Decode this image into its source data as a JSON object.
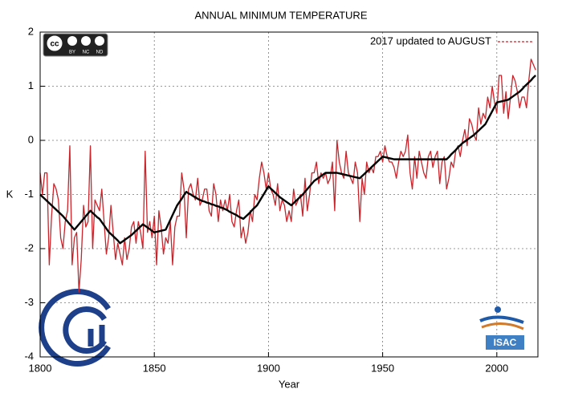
{
  "chart_data": {
    "type": "line",
    "title": "ANNUAL MINIMUM TEMPERATURE",
    "x_label": "Year",
    "y_label": "K",
    "logos": {
      "cc": "cc",
      "cc_labels": [
        "BY",
        "NC",
        "ND"
      ],
      "isac": "ISAC"
    },
    "xlim": [
      1800,
      2018
    ],
    "ylim": [
      -4,
      2
    ],
    "xticks": [
      1800,
      1850,
      1900,
      1950,
      2000
    ],
    "yticks": [
      -4,
      -3,
      -2,
      -1,
      0,
      1,
      2
    ],
    "grid": true,
    "legend": "top-right",
    "x": [
      1800,
      1801,
      1802,
      1803,
      1804,
      1805,
      1806,
      1807,
      1808,
      1809,
      1810,
      1811,
      1812,
      1813,
      1814,
      1815,
      1816,
      1817,
      1818,
      1819,
      1820,
      1821,
      1822,
      1823,
      1824,
      1825,
      1826,
      1827,
      1828,
      1829,
      1830,
      1831,
      1832,
      1833,
      1834,
      1835,
      1836,
      1837,
      1838,
      1839,
      1840,
      1841,
      1842,
      1843,
      1844,
      1845,
      1846,
      1847,
      1848,
      1849,
      1850,
      1851,
      1852,
      1853,
      1854,
      1855,
      1856,
      1857,
      1858,
      1859,
      1860,
      1861,
      1862,
      1863,
      1864,
      1865,
      1866,
      1867,
      1868,
      1869,
      1870,
      1871,
      1872,
      1873,
      1874,
      1875,
      1876,
      1877,
      1878,
      1879,
      1880,
      1881,
      1882,
      1883,
      1884,
      1885,
      1886,
      1887,
      1888,
      1889,
      1890,
      1891,
      1892,
      1893,
      1894,
      1895,
      1896,
      1897,
      1898,
      1899,
      1900,
      1901,
      1902,
      1903,
      1904,
      1905,
      1906,
      1907,
      1908,
      1909,
      1910,
      1911,
      1912,
      1913,
      1914,
      1915,
      1916,
      1917,
      1918,
      1919,
      1920,
      1921,
      1922,
      1923,
      1924,
      1925,
      1926,
      1927,
      1928,
      1929,
      1930,
      1931,
      1932,
      1933,
      1934,
      1935,
      1936,
      1937,
      1938,
      1939,
      1940,
      1941,
      1942,
      1943,
      1944,
      1945,
      1946,
      1947,
      1948,
      1949,
      1950,
      1951,
      1952,
      1953,
      1954,
      1955,
      1956,
      1957,
      1958,
      1959,
      1960,
      1961,
      1962,
      1963,
      1964,
      1965,
      1966,
      1967,
      1968,
      1969,
      1970,
      1971,
      1972,
      1973,
      1974,
      1975,
      1976,
      1977,
      1978,
      1979,
      1980,
      1981,
      1982,
      1983,
      1984,
      1985,
      1986,
      1987,
      1988,
      1989,
      1990,
      1991,
      1992,
      1993,
      1994,
      1995,
      1996,
      1997,
      1998,
      1999,
      2000,
      2001,
      2002,
      2003,
      2004,
      2005,
      2006,
      2007,
      2008,
      2009,
      2010,
      2011,
      2012,
      2013,
      2014,
      2015,
      2016,
      2017
    ],
    "series": [
      {
        "name": "2017 updated to AUGUST",
        "color": "#c8242b",
        "values": [
          -0.6,
          -1.0,
          -0.6,
          -0.6,
          -2.3,
          -1.4,
          -0.8,
          -0.9,
          -1.1,
          -1.8,
          -2.0,
          -1.5,
          -1.3,
          -0.1,
          -2.3,
          -1.8,
          -1.7,
          -2.8,
          -2.2,
          -1.2,
          -1.6,
          -1.5,
          -0.1,
          -2.0,
          -1.1,
          -1.2,
          -1.3,
          -0.9,
          -1.5,
          -2.1,
          -1.8,
          -1.2,
          -1.7,
          -2.2,
          -1.9,
          -2.1,
          -2.3,
          -1.8,
          -2.2,
          -2.0,
          -1.6,
          -1.5,
          -1.9,
          -1.5,
          -1.7,
          -2.0,
          -0.2,
          -1.7,
          -1.5,
          -1.8,
          -1.4,
          -2.3,
          -1.3,
          -1.6,
          -2.1,
          -1.8,
          -1.9,
          -1.5,
          -2.3,
          -1.6,
          -1.4,
          -1.4,
          -0.6,
          -0.9,
          -1.8,
          -0.9,
          -0.8,
          -1.0,
          -1.1,
          -0.7,
          -1.2,
          -1.1,
          -0.9,
          -0.9,
          -1.3,
          -1.4,
          -0.8,
          -1.0,
          -1.5,
          -1.1,
          -1.3,
          -1.1,
          -1.3,
          -1.0,
          -1.5,
          -1.6,
          -1.3,
          -1.1,
          -1.8,
          -1.6,
          -1.9,
          -1.7,
          -1.3,
          -1.5,
          -1.0,
          -1.1,
          -0.7,
          -0.4,
          -0.6,
          -0.9,
          -0.6,
          -0.9,
          -1.0,
          -1.2,
          -0.8,
          -1.3,
          -1.1,
          -1.2,
          -1.5,
          -1.3,
          -1.5,
          -0.9,
          -1.2,
          -1.1,
          -1.0,
          -1.4,
          -0.7,
          -1.3,
          -1.0,
          -0.6,
          -0.6,
          -0.4,
          -0.8,
          -0.6,
          -0.7,
          -0.6,
          -0.8,
          -0.7,
          -0.4,
          -1.3,
          0.0,
          -0.4,
          -0.6,
          -0.7,
          -0.2,
          -0.6,
          -0.7,
          -0.8,
          -0.4,
          -0.6,
          -1.5,
          -0.7,
          -1.0,
          -0.4,
          -0.6,
          -0.5,
          -0.6,
          -0.3,
          -0.3,
          -0.2,
          -0.4,
          -0.1,
          -0.3,
          -0.4,
          -0.4,
          -0.5,
          -0.7,
          -0.4,
          -0.2,
          -0.3,
          -0.2,
          0.1,
          -0.6,
          -0.9,
          -0.3,
          -0.7,
          -0.2,
          -0.4,
          -0.6,
          -0.7,
          -0.3,
          -0.2,
          -0.5,
          -0.3,
          -0.2,
          -0.8,
          -0.4,
          -0.3,
          -0.9,
          -0.7,
          -0.4,
          -0.5,
          -0.2,
          -0.1,
          -0.3,
          0.0,
          0.2,
          -0.1,
          0.4,
          0.3,
          0.1,
          0.0,
          0.6,
          0.3,
          0.5,
          0.4,
          0.8,
          0.6,
          1.0,
          0.7,
          0.5,
          1.2,
          1.2,
          0.5,
          0.9,
          0.4,
          0.8,
          1.2,
          1.1,
          0.9,
          0.6,
          0.8,
          0.8,
          0.6,
          1.1,
          1.5,
          1.4,
          1.3
        ]
      },
      {
        "color": "#000000",
        "values": [
          -1.0,
          -1.04,
          -1.08,
          -1.12,
          -1.16,
          -1.2,
          -1.24,
          -1.28,
          -1.32,
          -1.36,
          -1.4,
          -1.45,
          -1.5,
          -1.55,
          -1.6,
          -1.65,
          -1.6,
          -1.55,
          -1.5,
          -1.45,
          -1.4,
          -1.35,
          -1.3,
          -1.34,
          -1.38,
          -1.42,
          -1.45,
          -1.51,
          -1.57,
          -1.63,
          -1.69,
          -1.73,
          -1.77,
          -1.81,
          -1.85,
          -1.9,
          -1.87,
          -1.84,
          -1.81,
          -1.78,
          -1.75,
          -1.71,
          -1.67,
          -1.63,
          -1.59,
          -1.55,
          -1.58,
          -1.61,
          -1.64,
          -1.67,
          -1.7,
          -1.69,
          -1.68,
          -1.67,
          -1.66,
          -1.65,
          -1.56,
          -1.47,
          -1.38,
          -1.29,
          -1.2,
          -1.14,
          -1.08,
          -1.01,
          -0.95,
          -0.98,
          -1.0,
          -1.03,
          -1.05,
          -1.08,
          -1.1,
          -1.12,
          -1.13,
          -1.15,
          -1.16,
          -1.18,
          -1.19,
          -1.21,
          -1.22,
          -1.24,
          -1.25,
          -1.27,
          -1.29,
          -1.32,
          -1.34,
          -1.36,
          -1.38,
          -1.41,
          -1.43,
          -1.45,
          -1.41,
          -1.37,
          -1.33,
          -1.28,
          -1.24,
          -1.2,
          -1.13,
          -1.06,
          -0.99,
          -0.92,
          -0.85,
          -0.89,
          -0.93,
          -0.97,
          -1.01,
          -1.05,
          -1.08,
          -1.11,
          -1.14,
          -1.17,
          -1.2,
          -1.16,
          -1.12,
          -1.08,
          -1.04,
          -1.0,
          -0.95,
          -0.9,
          -0.85,
          -0.8,
          -0.75,
          -0.72,
          -0.69,
          -0.66,
          -0.63,
          -0.6,
          -0.6,
          -0.6,
          -0.6,
          -0.6,
          -0.6,
          -0.61,
          -0.62,
          -0.63,
          -0.64,
          -0.65,
          -0.66,
          -0.67,
          -0.68,
          -0.69,
          -0.7,
          -0.66,
          -0.62,
          -0.58,
          -0.54,
          -0.5,
          -0.46,
          -0.42,
          -0.38,
          -0.34,
          -0.3,
          -0.31,
          -0.32,
          -0.33,
          -0.34,
          -0.35,
          -0.35,
          -0.35,
          -0.35,
          -0.35,
          -0.35,
          -0.35,
          -0.35,
          -0.35,
          -0.35,
          -0.35,
          -0.35,
          -0.35,
          -0.35,
          -0.35,
          -0.35,
          -0.35,
          -0.35,
          -0.35,
          -0.35,
          -0.35,
          -0.35,
          -0.35,
          -0.35,
          -0.31,
          -0.26,
          -0.22,
          -0.18,
          -0.13,
          -0.09,
          -0.05,
          -0.02,
          0.01,
          0.04,
          0.07,
          0.1,
          0.14,
          0.18,
          0.22,
          0.26,
          0.3,
          0.38,
          0.46,
          0.54,
          0.62,
          0.7,
          0.71,
          0.72,
          0.73,
          0.74,
          0.75,
          0.78,
          0.81,
          0.84,
          0.87,
          0.9,
          0.94,
          0.99,
          1.03,
          1.07,
          1.11,
          1.16,
          1.2
        ]
      }
    ]
  }
}
